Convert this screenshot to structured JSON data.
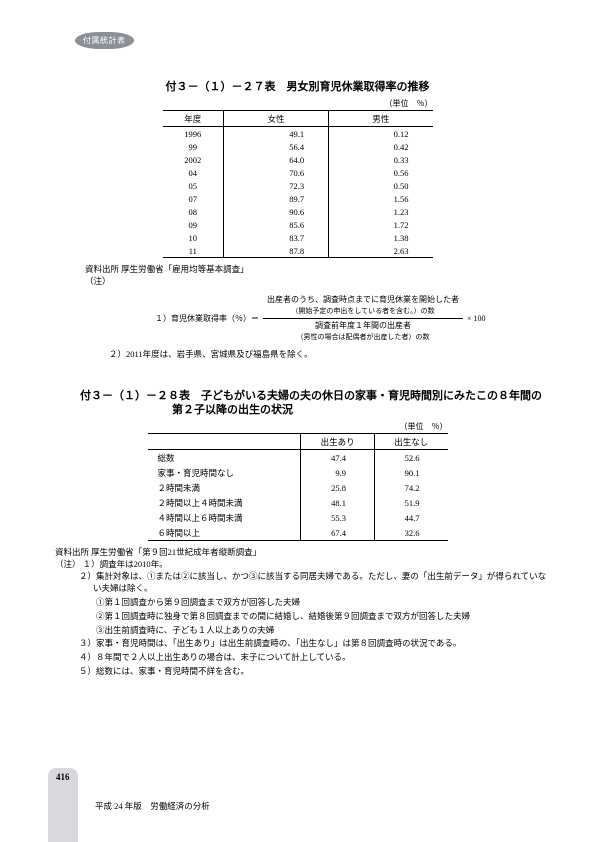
{
  "badge": "付属統計表",
  "section1": {
    "title": "付３－（１）－２７表　男女別育児休業取得率の推移",
    "unit": "（単位　％）",
    "columns": [
      "年度",
      "女性",
      "男性"
    ],
    "rows": [
      [
        "1996",
        "49.1",
        "0.12"
      ],
      [
        "99",
        "56.4",
        "0.42"
      ],
      [
        "2002",
        "64.0",
        "0.33"
      ],
      [
        "04",
        "70.6",
        "0.56"
      ],
      [
        "05",
        "72.3",
        "0.50"
      ],
      [
        "07",
        "89.7",
        "1.56"
      ],
      [
        "08",
        "90.6",
        "1.23"
      ],
      [
        "09",
        "85.6",
        "1.72"
      ],
      [
        "10",
        "83.7",
        "1.38"
      ],
      [
        "11",
        "87.8",
        "2.63"
      ]
    ],
    "source_label": "資料出所",
    "source_text": "厚生労働省「雇用均等基本調査」",
    "notes_label": "（注）",
    "formula": {
      "lhs": "１）育児休業取得率（％）＝",
      "numerator": "出産者のうち、調査時点までに育児休業を開始した者",
      "numerator_sub": "（開始予定の申出をしている者を含む。）の数",
      "denominator": "調査前年度１年間の出産者",
      "denominator_sub": "（男性の場合は配偶者が出産した者）の数",
      "suffix": "× 100"
    },
    "note2": "２）2011年度は、岩手県、宮城県及び福島県を除く。"
  },
  "section2": {
    "title": "付３－（１）－２８表　子どもがいる夫婦の夫の休日の家事・育児時間別にみたこの８年間の第２子以降の出生の状況",
    "unit": "（単位　％）",
    "columns": [
      "",
      "出生あり",
      "出生なし"
    ],
    "rows": [
      [
        "総数",
        "47.4",
        "52.6"
      ],
      [
        "家事・育児時間なし",
        "9.9",
        "90.1"
      ],
      [
        "２時間未満",
        "25.8",
        "74.2"
      ],
      [
        "２時間以上４時間未満",
        "48.1",
        "51.9"
      ],
      [
        "４時間以上６時間未満",
        "55.3",
        "44.7"
      ],
      [
        "６時間以上",
        "67.4",
        "32.6"
      ]
    ],
    "source_label": "資料出所",
    "source_text": "厚生労働省「第９回21世紀成年者縦断調査」",
    "notes_label": "（注）",
    "notes": [
      "１）調査年は2010年。",
      "２）集計対象は、①または②に該当し、かつ③に該当する同居夫婦である。ただし、妻の「出生前データ」が得られていない夫婦は除く。",
      "　　①第１回調査から第９回調査まで双方が回答した夫婦",
      "　　②第１回調査時に独身で第８回調査までの間に結婚し、結婚後第９回調査まで双方が回答した夫婦",
      "　　③出生前調査時に、子ども１人以上ありの夫婦",
      "３）家事・育児時間は、「出生あり」は出生前調査時の、「出生なし」は第８回調査時の状況である。",
      "４）８年間で２人以上出生ありの場合は、末子について計上している。",
      "５）総数には、家事・育児時間不詳を含む。"
    ]
  },
  "footer": {
    "page": "416",
    "text": "平成 24 年版　労働経済の分析"
  }
}
